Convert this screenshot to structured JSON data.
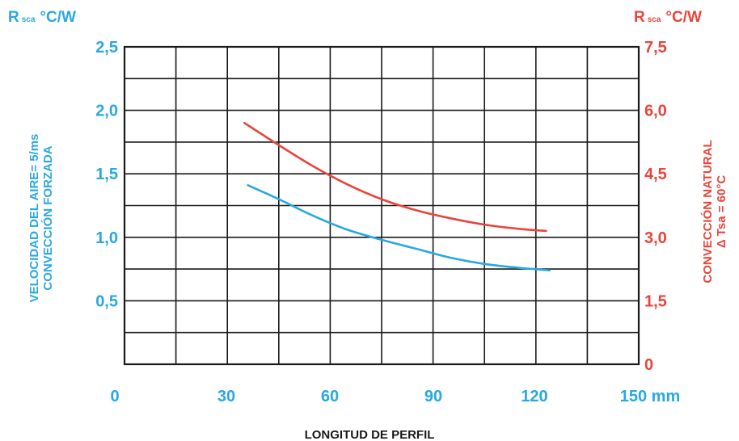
{
  "chart_data": {
    "type": "line",
    "x_ticks": [
      "0",
      "30",
      "60",
      "90",
      "120",
      "150 mm"
    ],
    "xlabel": "LONGITUD DE PERFIL",
    "xlim": [
      0,
      150
    ],
    "left_axis": {
      "unit_prefix": "R",
      "unit_sub": "sca",
      "unit_suffix": "°C/W",
      "label_line1": "VELOCIDAD DEL AIRE= 5/ms",
      "label_line2": "CONVECCIÓN FORZADA",
      "ticks": [
        "2,5",
        "2,0",
        "1,5",
        "1,0",
        "0,5"
      ],
      "ylim": [
        0,
        2.5
      ],
      "color": "#29a8e0"
    },
    "right_axis": {
      "unit_prefix": "R",
      "unit_sub": "sca",
      "unit_suffix": "°C/W",
      "label_line1": "CONVECCIÓN NATURAL",
      "label_line2": "Δ Tsa = 60°C",
      "ticks": [
        "7,5",
        "6,0",
        "4,5",
        "3,0",
        "1,5",
        "0"
      ],
      "ylim": [
        0,
        7.5
      ],
      "color": "#e8453c"
    },
    "grid": true,
    "series": [
      {
        "axis": "left",
        "color": "#29a8e0",
        "x": [
          36,
          45,
          55,
          65,
          75,
          85,
          95,
          105,
          115,
          124
        ],
        "y": [
          1.41,
          1.3,
          1.17,
          1.06,
          0.98,
          0.91,
          0.84,
          0.79,
          0.76,
          0.74
        ]
      },
      {
        "axis": "right",
        "color": "#e8453c",
        "x": [
          35,
          45,
          55,
          65,
          75,
          85,
          95,
          105,
          115,
          123
        ],
        "y": [
          5.7,
          5.18,
          4.68,
          4.25,
          3.9,
          3.64,
          3.45,
          3.3,
          3.2,
          3.15
        ]
      }
    ]
  }
}
